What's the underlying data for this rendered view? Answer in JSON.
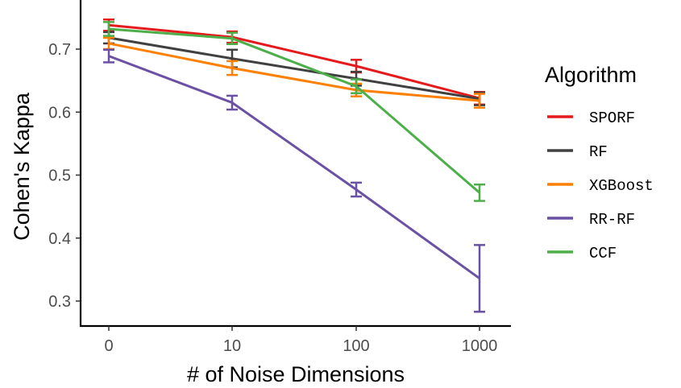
{
  "chart_data": {
    "type": "line",
    "xlabel": "# of Noise Dimensions",
    "ylabel": "Cohen's Kappa",
    "categories": [
      "0",
      "10",
      "100",
      "1000"
    ],
    "yticks": [
      0.3,
      0.4,
      0.5,
      0.6,
      0.7
    ],
    "ytick_labels": [
      "0.3",
      "0.4",
      "0.5",
      "0.6",
      "0.7"
    ],
    "ylim": [
      0.27,
      0.745
    ],
    "grid": false,
    "legend": {
      "title": "Algorithm",
      "position": "right"
    },
    "error_bars": true,
    "series": [
      {
        "name": "SPORF",
        "color": "#e41a1c",
        "values": [
          0.738,
          0.719,
          0.673,
          0.622
        ],
        "err": [
          0.009,
          0.009,
          0.01,
          0.01
        ]
      },
      {
        "name": "RF",
        "color": "#404040",
        "values": [
          0.718,
          0.685,
          0.653,
          0.621
        ],
        "err": [
          0.009,
          0.014,
          0.011,
          0.01
        ]
      },
      {
        "name": "XGBoost",
        "color": "#ff7f00",
        "values": [
          0.709,
          0.67,
          0.635,
          0.618
        ],
        "err": [
          0.009,
          0.011,
          0.01,
          0.011
        ]
      },
      {
        "name": "RR-RF",
        "color": "#6a51a3",
        "values": [
          0.689,
          0.615,
          0.477,
          0.336
        ],
        "err": [
          0.01,
          0.011,
          0.011,
          0.053
        ]
      },
      {
        "name": "CCF",
        "color": "#4daf4a",
        "values": [
          0.732,
          0.717,
          0.641,
          0.472
        ],
        "err": [
          0.011,
          0.009,
          0.011,
          0.013
        ]
      }
    ]
  }
}
